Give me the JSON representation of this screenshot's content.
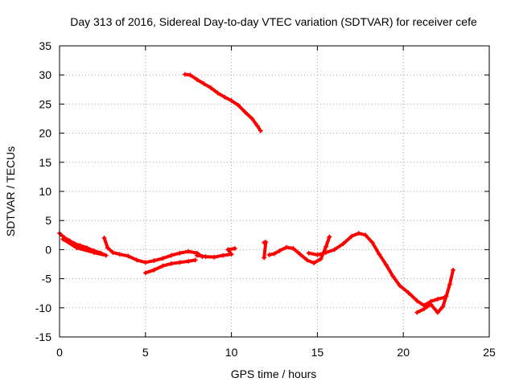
{
  "chart_data": {
    "type": "scatter",
    "title": "Day 313 of 2016, Sidereal Day-to-day VTEC variation (SDTVAR) for receiver cefe",
    "xlabel": "GPS time / hours",
    "ylabel": "SDTVAR / TECUs",
    "xlim": [
      0,
      25
    ],
    "ylim": [
      -15,
      35
    ],
    "xticks": [
      0,
      5,
      10,
      15,
      20,
      25
    ],
    "yticks": [
      -15,
      -10,
      -5,
      0,
      5,
      10,
      15,
      20,
      25,
      30,
      35
    ],
    "grid": true,
    "marker": "+",
    "color": "#ff0000",
    "series": [
      {
        "name": "arc-1",
        "points": [
          [
            0.0,
            2.8
          ],
          [
            0.3,
            2.0
          ],
          [
            0.6,
            1.5
          ],
          [
            0.9,
            1.0
          ],
          [
            1.2,
            0.7
          ],
          [
            1.6,
            0.3
          ],
          [
            2.0,
            -0.2
          ],
          [
            2.4,
            -0.6
          ],
          [
            2.7,
            -1.0
          ],
          [
            2.0,
            -0.5
          ],
          [
            1.0,
            0.3
          ],
          [
            0.2,
            1.8
          ]
        ]
      },
      {
        "name": "arc-2",
        "points": [
          [
            2.6,
            2.0
          ],
          [
            2.8,
            0.3
          ],
          [
            3.1,
            -0.5
          ],
          [
            3.5,
            -0.8
          ],
          [
            4.0,
            -1.1
          ],
          [
            4.5,
            -1.8
          ],
          [
            5.0,
            -2.2
          ],
          [
            5.5,
            -1.9
          ],
          [
            6.0,
            -1.5
          ],
          [
            6.5,
            -1.0
          ],
          [
            7.0,
            -0.6
          ],
          [
            7.5,
            -0.3
          ],
          [
            8.0,
            -0.6
          ],
          [
            8.3,
            -1.2
          ]
        ]
      },
      {
        "name": "arc-3",
        "points": [
          [
            5.0,
            -4.0
          ],
          [
            5.5,
            -3.5
          ],
          [
            6.0,
            -2.8
          ],
          [
            6.5,
            -2.4
          ],
          [
            7.0,
            -2.2
          ],
          [
            7.5,
            -2.0
          ],
          [
            7.9,
            -1.8
          ]
        ]
      },
      {
        "name": "arc-4",
        "points": [
          [
            8.0,
            -1.0
          ],
          [
            8.5,
            -1.2
          ],
          [
            9.0,
            -1.3
          ],
          [
            9.5,
            -1.0
          ],
          [
            10.0,
            -0.8
          ],
          [
            9.8,
            0.0
          ],
          [
            10.2,
            0.2
          ]
        ]
      },
      {
        "name": "arc-5",
        "points": [
          [
            7.3,
            30.1
          ],
          [
            7.6,
            30.0
          ],
          [
            8.0,
            29.2
          ],
          [
            8.4,
            28.5
          ],
          [
            8.8,
            27.8
          ],
          [
            9.2,
            26.9
          ],
          [
            9.6,
            26.2
          ],
          [
            10.0,
            25.6
          ],
          [
            10.4,
            24.8
          ],
          [
            10.8,
            23.6
          ],
          [
            11.2,
            22.5
          ],
          [
            11.5,
            21.3
          ],
          [
            11.7,
            20.4
          ]
        ]
      },
      {
        "name": "arc-6",
        "points": [
          [
            11.9,
            1.2
          ],
          [
            12.0,
            1.3
          ],
          [
            11.9,
            -1.4
          ]
        ]
      },
      {
        "name": "arc-7",
        "points": [
          [
            12.2,
            -0.9
          ],
          [
            12.5,
            -0.7
          ],
          [
            12.8,
            -0.2
          ],
          [
            13.2,
            0.4
          ],
          [
            13.6,
            0.2
          ],
          [
            14.0,
            -0.8
          ],
          [
            14.4,
            -1.8
          ],
          [
            14.8,
            -2.3
          ],
          [
            15.2,
            -1.6
          ],
          [
            15.5,
            0.5
          ],
          [
            15.7,
            2.2
          ]
        ]
      },
      {
        "name": "arc-8",
        "points": [
          [
            14.5,
            -0.6
          ],
          [
            15.0,
            -0.9
          ],
          [
            15.5,
            -0.5
          ],
          [
            16.0,
            0.0
          ],
          [
            16.5,
            1.0
          ],
          [
            17.0,
            2.3
          ],
          [
            17.4,
            2.8
          ],
          [
            17.8,
            2.5
          ],
          [
            18.2,
            1.2
          ],
          [
            18.6,
            -0.8
          ],
          [
            19.0,
            -2.6
          ],
          [
            19.4,
            -4.6
          ],
          [
            19.8,
            -6.2
          ],
          [
            20.3,
            -7.4
          ],
          [
            20.8,
            -8.8
          ],
          [
            21.2,
            -9.6
          ],
          [
            21.6,
            -8.9
          ],
          [
            22.0,
            -8.5
          ],
          [
            22.4,
            -8.2
          ]
        ]
      },
      {
        "name": "arc-9",
        "points": [
          [
            20.8,
            -10.8
          ],
          [
            21.2,
            -10.2
          ],
          [
            21.6,
            -9.4
          ],
          [
            22.0,
            -10.8
          ],
          [
            22.3,
            -9.8
          ],
          [
            22.5,
            -8.0
          ],
          [
            22.7,
            -6.0
          ],
          [
            22.9,
            -3.5
          ]
        ]
      }
    ]
  }
}
